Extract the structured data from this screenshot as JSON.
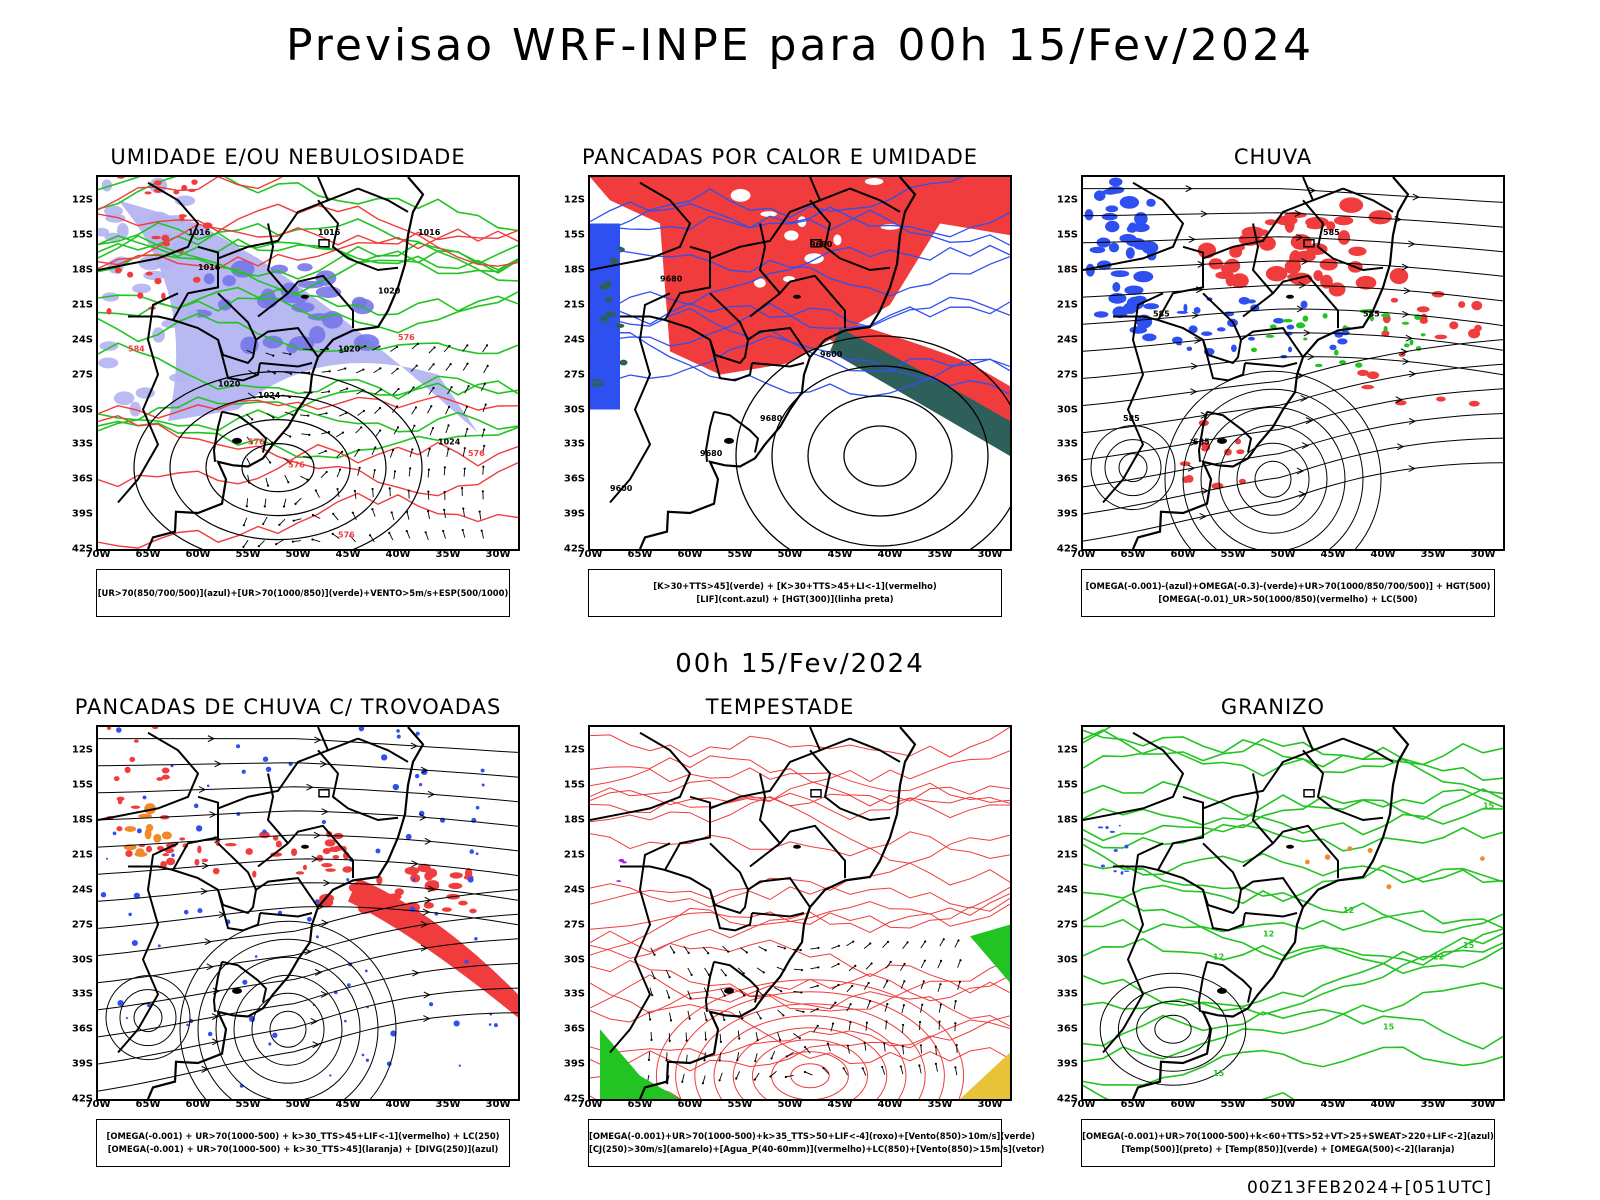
{
  "main_title": "Previsao WRF-INPE  para 00h 15/Fev/2024",
  "mid_title": "00h 15/Fev/2024",
  "footer": "00Z13FEB2024+[051UTC]",
  "axes": {
    "lat_labels": [
      "12S",
      "15S",
      "18S",
      "21S",
      "24S",
      "27S",
      "30S",
      "33S",
      "36S",
      "39S",
      "42S"
    ],
    "lon_labels": [
      "70W",
      "65W",
      "60W",
      "55W",
      "50W",
      "45W",
      "40W",
      "35W",
      "30W"
    ]
  },
  "panels": [
    {
      "id": "umidade",
      "title": "UMIDADE E/OU NEBULOSIDADE",
      "legend_lines": [
        "[UR>70(850/700/500)](azul)+[UR>70(1000/850)](verde)+VENTO>5m/s+ESP(500/1000)"
      ],
      "contour_labels": [
        "1016",
        "1016",
        "1016",
        "1016",
        "1020",
        "1020",
        "1020",
        "1024",
        "1024",
        "576",
        "576",
        "576",
        "576",
        "576",
        "584"
      ]
    },
    {
      "id": "pancadas-calor",
      "title": "PANCADAS POR CALOR E UMIDADE",
      "legend_lines": [
        "[K>30+TTS>45](verde) + [K>30+TTS>45+LI<-1](vermelho)",
        "[LIF](cont.azul) + [HGT(300)](linha preta)"
      ],
      "contour_labels": [
        "9680",
        "9680",
        "9680",
        "9680",
        "9600",
        "9600"
      ]
    },
    {
      "id": "chuva",
      "title": "CHUVA",
      "legend_lines": [
        "[OMEGA(-0.001)-(azul)+OMEGA(-0.3)-(verde)+UR>70(1000/850/700/500)] + HGT(500)",
        "[OMEGA(-0.01)_UR>50(1000/850)(vermelho) + LC(500)"
      ],
      "contour_labels": [
        "585",
        "585",
        "585",
        "585",
        "585"
      ]
    },
    {
      "id": "trovoadas",
      "title": "PANCADAS DE CHUVA C/ TROVOADAS",
      "legend_lines": [
        "[OMEGA(-0.001) + UR>70(1000-500) + k>30_TTS>45+LIF<-1](vermelho) + LC(250)",
        "[OMEGA(-0.001) + UR>70(1000-500) + k>30_TTS>45](laranja) + [DIVG(250)](azul)"
      ],
      "contour_labels": []
    },
    {
      "id": "tempestade",
      "title": "TEMPESTADE",
      "legend_lines": [
        "[OMEGA(-0.001)+UR>70(1000-500)+k>35_TTS>50+LIF<-4](roxo)+[Vento(850)>10m/s](verde)",
        "[CJ(250)>30m/s](amarelo)+[Agua_P(40-60mm)](vermelho)+LC(850)+[Vento(850)>15m/s](vetor)"
      ],
      "contour_labels": []
    },
    {
      "id": "granizo",
      "title": "GRANIZO",
      "legend_lines": [
        "[OMEGA(-0.001)+UR>70(1000-500)+k<60+TTS>52+VT>25+SWEAT>220+LIF<-2](azul)",
        "[Temp(500)](preto) + [Temp(850)](verde) + [OMEGA(500)<-2](laranja)"
      ],
      "contour_labels": [
        "12",
        "12",
        "12",
        "12",
        "15",
        "15",
        "15",
        "15"
      ]
    }
  ],
  "colors": {
    "red": "#f03c3c",
    "blue": "#2f50f0",
    "green": "#22c422",
    "lightblue": "#b4b4f2",
    "orange": "#f08a28",
    "darkgreen": "#2f5f5a",
    "yellow": "#e8c33a"
  }
}
